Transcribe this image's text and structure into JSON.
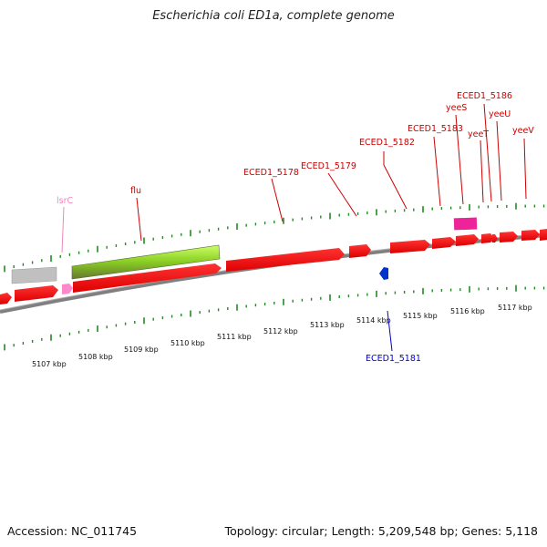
{
  "title": "Escherichia coli ED1a, complete genome",
  "footer": {
    "accession": "Accession: NC_011745",
    "summary": "Topology: circular; Length: 5,209,548 bp; Genes: 5,118"
  },
  "colors": {
    "gene": "#ff0000",
    "rna": "#ff88cc",
    "pseudo": "#c0c0c0",
    "mobile": "#99dd33",
    "ticks": "#228b22",
    "backbone": "#808080",
    "label_red": "#cc0000",
    "label_blue": "#0000cc",
    "label_pink": "#ee88bb"
  },
  "scale": {
    "kbp_labels": [
      "5107 kbp",
      "5108 kbp",
      "5109 kbp",
      "5110 kbp",
      "5111 kbp",
      "5112 kbp",
      "5113 kbp",
      "5114 kbp",
      "5115 kbp",
      "5116 kbp",
      "5117 kbp"
    ]
  },
  "gene_labels": [
    {
      "text": "lsrC",
      "color": "pink"
    },
    {
      "text": "flu",
      "color": "red"
    },
    {
      "text": "ECED1_5178",
      "color": "red"
    },
    {
      "text": "ECED1_5179",
      "color": "red"
    },
    {
      "text": "ECED1_5182",
      "color": "red"
    },
    {
      "text": "ECED1_5183",
      "color": "red"
    },
    {
      "text": "yeeS",
      "color": "red"
    },
    {
      "text": "yeeT",
      "color": "red"
    },
    {
      "text": "ECED1_5186",
      "color": "red"
    },
    {
      "text": "yeeU",
      "color": "red"
    },
    {
      "text": "yeeV",
      "color": "red"
    },
    {
      "text": "ECED1_5181",
      "color": "blue"
    }
  ]
}
